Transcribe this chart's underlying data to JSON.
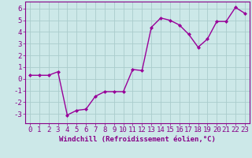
{
  "x": [
    0,
    1,
    2,
    3,
    4,
    5,
    6,
    7,
    8,
    9,
    10,
    11,
    12,
    13,
    14,
    15,
    16,
    17,
    18,
    19,
    20,
    21,
    22,
    23
  ],
  "y": [
    0.3,
    0.3,
    0.3,
    0.6,
    -3.1,
    -2.7,
    -2.6,
    -1.5,
    -1.1,
    -1.1,
    -1.1,
    0.8,
    0.7,
    4.4,
    5.2,
    5.0,
    4.6,
    3.8,
    2.7,
    3.4,
    4.9,
    4.9,
    6.1,
    5.6
  ],
  "line_color": "#990099",
  "marker": "D",
  "marker_size": 2,
  "linewidth": 1.0,
  "xlabel": "Windchill (Refroidissement éolien,°C)",
  "xlim": [
    -0.5,
    23.5
  ],
  "ylim": [
    -3.8,
    6.6
  ],
  "yticks": [
    -3,
    -2,
    -1,
    0,
    1,
    2,
    3,
    4,
    5,
    6
  ],
  "xticks": [
    0,
    1,
    2,
    3,
    4,
    5,
    6,
    7,
    8,
    9,
    10,
    11,
    12,
    13,
    14,
    15,
    16,
    17,
    18,
    19,
    20,
    21,
    22,
    23
  ],
  "background_color": "#cce8e8",
  "grid_color": "#aacccc",
  "tick_color": "#880088",
  "label_color": "#880088",
  "xlabel_fontsize": 6.5,
  "tick_fontsize": 6.5
}
